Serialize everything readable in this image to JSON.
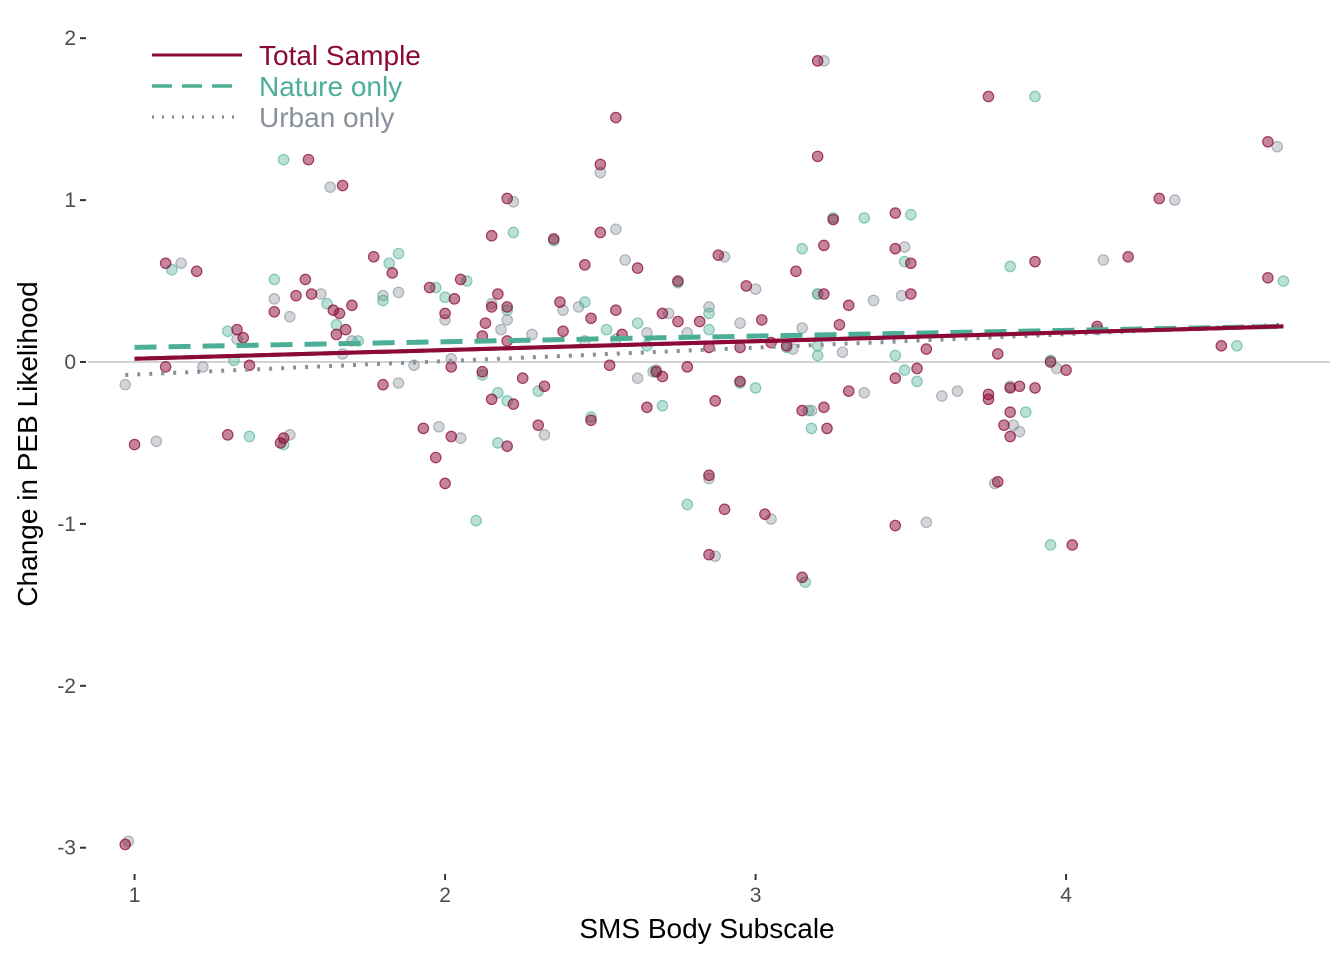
{
  "chart_data": {
    "type": "scatter",
    "title": "",
    "xlabel": "SMS Body Subscale",
    "ylabel": "Change in PEB Likelihood",
    "xlim": [
      0.85,
      4.85
    ],
    "ylim": [
      -3.15,
      2.1
    ],
    "x_ticks": [
      1,
      2,
      3,
      4
    ],
    "y_ticks": [
      -3,
      -2,
      -1,
      0,
      1,
      2
    ],
    "grid": false,
    "reference_line_y": 0,
    "legend_position": "top-left",
    "colors": {
      "total": "#8b0a37",
      "nature": "#4cae96",
      "urban": "#8a909a",
      "refline": "#d3d3d3"
    },
    "series": [
      {
        "name": "Total Sample",
        "line_style": "solid",
        "color": "#8b0a37",
        "trend": {
          "x": [
            1.0,
            4.7
          ],
          "y": [
            0.02,
            0.22
          ]
        },
        "points": [
          [
            0.97,
            -2.98
          ],
          [
            1.0,
            -0.51
          ],
          [
            1.1,
            0.61
          ],
          [
            1.1,
            -0.03
          ],
          [
            1.2,
            0.56
          ],
          [
            1.3,
            -0.45
          ],
          [
            1.33,
            0.2
          ],
          [
            1.35,
            0.15
          ],
          [
            1.37,
            -0.02
          ],
          [
            1.48,
            -0.47
          ],
          [
            1.47,
            -0.5
          ],
          [
            1.45,
            0.31
          ],
          [
            1.52,
            0.41
          ],
          [
            1.55,
            0.51
          ],
          [
            1.56,
            1.25
          ],
          [
            1.57,
            0.42
          ],
          [
            1.64,
            0.32
          ],
          [
            1.66,
            0.3
          ],
          [
            1.65,
            0.17
          ],
          [
            1.67,
            1.09
          ],
          [
            1.68,
            0.2
          ],
          [
            1.7,
            0.35
          ],
          [
            1.77,
            0.65
          ],
          [
            1.8,
            -0.14
          ],
          [
            1.83,
            0.55
          ],
          [
            1.93,
            -0.41
          ],
          [
            1.95,
            0.46
          ],
          [
            1.97,
            -0.59
          ],
          [
            2.0,
            -0.75
          ],
          [
            2.0,
            0.3
          ],
          [
            2.03,
            0.39
          ],
          [
            2.02,
            -0.46
          ],
          [
            2.02,
            -0.03
          ],
          [
            2.05,
            0.51
          ],
          [
            2.12,
            0.16
          ],
          [
            2.12,
            -0.06
          ],
          [
            2.13,
            0.24
          ],
          [
            2.15,
            0.34
          ],
          [
            2.15,
            -0.23
          ],
          [
            2.15,
            0.78
          ],
          [
            2.17,
            0.42
          ],
          [
            2.2,
            0.34
          ],
          [
            2.2,
            1.01
          ],
          [
            2.2,
            0.13
          ],
          [
            2.22,
            -0.26
          ],
          [
            2.2,
            -0.52
          ],
          [
            2.25,
            -0.1
          ],
          [
            2.3,
            -0.39
          ],
          [
            2.32,
            -0.15
          ],
          [
            2.35,
            0.76
          ],
          [
            2.37,
            0.37
          ],
          [
            2.38,
            0.19
          ],
          [
            2.45,
            0.6
          ],
          [
            2.47,
            0.27
          ],
          [
            2.47,
            -0.36
          ],
          [
            2.5,
            1.22
          ],
          [
            2.5,
            0.8
          ],
          [
            2.53,
            -0.02
          ],
          [
            2.55,
            0.32
          ],
          [
            2.55,
            1.51
          ],
          [
            2.57,
            0.17
          ],
          [
            2.62,
            0.58
          ],
          [
            2.65,
            -0.28
          ],
          [
            2.68,
            -0.06
          ],
          [
            2.7,
            0.3
          ],
          [
            2.7,
            -0.09
          ],
          [
            2.75,
            0.5
          ],
          [
            2.75,
            0.25
          ],
          [
            2.78,
            -0.03
          ],
          [
            2.82,
            0.25
          ],
          [
            2.85,
            0.09
          ],
          [
            2.85,
            -0.7
          ],
          [
            2.85,
            -1.19
          ],
          [
            2.87,
            -0.24
          ],
          [
            2.88,
            0.66
          ],
          [
            2.9,
            -0.91
          ],
          [
            2.95,
            0.09
          ],
          [
            2.95,
            -0.12
          ],
          [
            2.97,
            0.47
          ],
          [
            3.02,
            0.26
          ],
          [
            3.03,
            -0.94
          ],
          [
            3.05,
            0.12
          ],
          [
            3.1,
            0.1
          ],
          [
            3.13,
            0.56
          ],
          [
            3.15,
            -0.3
          ],
          [
            3.15,
            -1.33
          ],
          [
            3.2,
            1.86
          ],
          [
            3.2,
            1.27
          ],
          [
            3.22,
            0.72
          ],
          [
            3.22,
            -0.28
          ],
          [
            3.22,
            0.42
          ],
          [
            3.23,
            -0.41
          ],
          [
            3.25,
            0.88
          ],
          [
            3.27,
            0.23
          ],
          [
            3.3,
            0.35
          ],
          [
            3.3,
            -0.18
          ],
          [
            3.45,
            -0.1
          ],
          [
            3.45,
            0.7
          ],
          [
            3.45,
            0.92
          ],
          [
            3.45,
            -1.01
          ],
          [
            3.5,
            0.61
          ],
          [
            3.5,
            0.42
          ],
          [
            3.52,
            -0.04
          ],
          [
            3.55,
            0.08
          ],
          [
            3.75,
            1.64
          ],
          [
            3.75,
            -0.23
          ],
          [
            3.75,
            -0.2
          ],
          [
            3.78,
            -0.74
          ],
          [
            3.78,
            0.05
          ],
          [
            3.8,
            -0.39
          ],
          [
            3.82,
            -0.31
          ],
          [
            3.82,
            -0.46
          ],
          [
            3.82,
            -0.16
          ],
          [
            3.85,
            -0.15
          ],
          [
            3.9,
            0.62
          ],
          [
            3.9,
            -0.16
          ],
          [
            3.95,
            0.0
          ],
          [
            4.0,
            -0.05
          ],
          [
            4.02,
            -1.13
          ],
          [
            4.1,
            0.22
          ],
          [
            4.2,
            0.65
          ],
          [
            4.3,
            1.01
          ],
          [
            4.5,
            0.1
          ],
          [
            4.65,
            1.36
          ],
          [
            4.65,
            0.52
          ]
        ]
      },
      {
        "name": "Nature only",
        "line_style": "dashed",
        "color": "#4cae96",
        "trend": {
          "x": [
            1.0,
            4.7
          ],
          "y": [
            0.09,
            0.22
          ]
        },
        "points": [
          [
            1.12,
            0.57
          ],
          [
            1.3,
            0.19
          ],
          [
            1.32,
            0.01
          ],
          [
            1.37,
            -0.46
          ],
          [
            1.45,
            0.51
          ],
          [
            1.48,
            -0.51
          ],
          [
            1.48,
            1.25
          ],
          [
            1.62,
            0.36
          ],
          [
            1.72,
            0.13
          ],
          [
            1.82,
            0.61
          ],
          [
            1.85,
            0.67
          ],
          [
            1.97,
            0.46
          ],
          [
            2.0,
            0.4
          ],
          [
            2.07,
            0.5
          ],
          [
            2.1,
            -0.98
          ],
          [
            2.12,
            -0.08
          ],
          [
            2.17,
            -0.19
          ],
          [
            2.17,
            -0.5
          ],
          [
            2.2,
            -0.24
          ],
          [
            2.22,
            0.8
          ],
          [
            2.3,
            -0.18
          ],
          [
            2.35,
            0.75
          ],
          [
            2.45,
            0.37
          ],
          [
            2.47,
            -0.34
          ],
          [
            2.52,
            0.2
          ],
          [
            2.55,
            0.14
          ],
          [
            2.62,
            0.24
          ],
          [
            2.65,
            0.1
          ],
          [
            2.67,
            -0.06
          ],
          [
            2.7,
            -0.27
          ],
          [
            2.75,
            0.49
          ],
          [
            2.78,
            -0.88
          ],
          [
            2.85,
            0.3
          ],
          [
            2.95,
            -0.13
          ],
          [
            3.0,
            -0.16
          ],
          [
            3.1,
            0.09
          ],
          [
            3.15,
            0.7
          ],
          [
            3.16,
            -1.36
          ],
          [
            3.17,
            -0.3
          ],
          [
            3.18,
            -0.41
          ],
          [
            3.2,
            0.04
          ],
          [
            3.2,
            0.42
          ],
          [
            3.25,
            0.89
          ],
          [
            3.35,
            0.89
          ],
          [
            3.45,
            0.04
          ],
          [
            3.48,
            0.62
          ],
          [
            3.5,
            0.91
          ],
          [
            3.48,
            -0.05
          ],
          [
            3.52,
            -0.12
          ],
          [
            3.82,
            0.59
          ],
          [
            3.87,
            -0.31
          ],
          [
            3.95,
            -1.13
          ],
          [
            3.95,
            0.01
          ],
          [
            4.1,
            0.2
          ],
          [
            4.55,
            0.1
          ],
          [
            4.7,
            0.5
          ],
          [
            1.65,
            0.23
          ],
          [
            1.8,
            0.38
          ],
          [
            2.2,
            0.32
          ],
          [
            2.85,
            0.2
          ],
          [
            3.2,
            0.1
          ],
          [
            3.9,
            1.64
          ]
        ]
      },
      {
        "name": "Urban only",
        "line_style": "dotted",
        "color": "#8a909a",
        "trend": {
          "x": [
            0.97,
            4.7
          ],
          "y": [
            -0.08,
            0.23
          ]
        },
        "points": [
          [
            0.98,
            -2.96
          ],
          [
            0.97,
            -0.14
          ],
          [
            1.07,
            -0.49
          ],
          [
            1.15,
            0.61
          ],
          [
            1.22,
            -0.03
          ],
          [
            1.33,
            0.14
          ],
          [
            1.45,
            0.39
          ],
          [
            1.5,
            0.28
          ],
          [
            1.5,
            -0.45
          ],
          [
            1.6,
            0.42
          ],
          [
            1.63,
            1.08
          ],
          [
            1.67,
            0.05
          ],
          [
            1.7,
            0.13
          ],
          [
            1.8,
            0.41
          ],
          [
            1.85,
            -0.13
          ],
          [
            1.9,
            -0.02
          ],
          [
            1.98,
            -0.4
          ],
          [
            2.0,
            0.26
          ],
          [
            2.02,
            0.02
          ],
          [
            2.05,
            -0.47
          ],
          [
            2.15,
            0.36
          ],
          [
            2.18,
            0.2
          ],
          [
            2.2,
            0.26
          ],
          [
            2.22,
            0.99
          ],
          [
            2.28,
            0.17
          ],
          [
            2.32,
            -0.45
          ],
          [
            2.38,
            0.32
          ],
          [
            2.43,
            0.34
          ],
          [
            2.5,
            1.17
          ],
          [
            2.55,
            0.82
          ],
          [
            2.58,
            0.63
          ],
          [
            2.62,
            -0.1
          ],
          [
            2.68,
            -0.05
          ],
          [
            2.72,
            0.3
          ],
          [
            2.78,
            0.18
          ],
          [
            2.85,
            0.34
          ],
          [
            2.85,
            -0.72
          ],
          [
            2.87,
            -1.2
          ],
          [
            2.9,
            0.65
          ],
          [
            2.95,
            0.24
          ],
          [
            3.0,
            0.45
          ],
          [
            3.05,
            -0.97
          ],
          [
            3.12,
            0.08
          ],
          [
            3.15,
            0.21
          ],
          [
            3.18,
            -0.3
          ],
          [
            3.2,
            0.42
          ],
          [
            3.22,
            1.86
          ],
          [
            3.28,
            0.06
          ],
          [
            3.35,
            -0.19
          ],
          [
            3.38,
            0.38
          ],
          [
            3.47,
            0.41
          ],
          [
            3.48,
            0.71
          ],
          [
            3.55,
            -0.99
          ],
          [
            3.6,
            -0.21
          ],
          [
            3.65,
            -0.18
          ],
          [
            3.77,
            -0.75
          ],
          [
            3.82,
            -0.15
          ],
          [
            3.85,
            -0.43
          ],
          [
            3.83,
            -0.39
          ],
          [
            3.97,
            -0.04
          ],
          [
            4.12,
            0.63
          ],
          [
            4.35,
            1.0
          ],
          [
            4.68,
            1.33
          ],
          [
            1.85,
            0.43
          ],
          [
            2.45,
            0.13
          ],
          [
            2.65,
            0.18
          ]
        ]
      }
    ]
  }
}
